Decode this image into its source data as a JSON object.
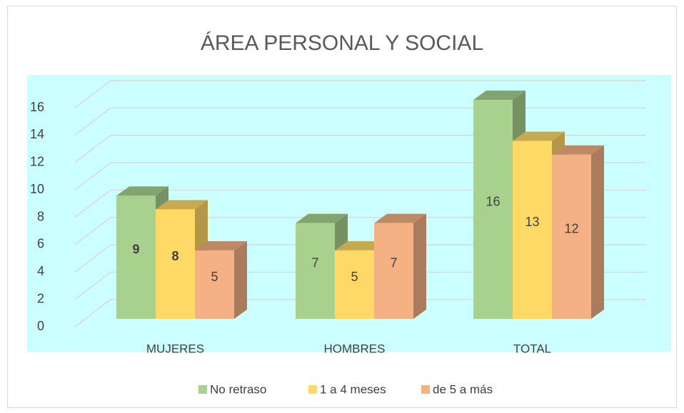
{
  "chart_data": {
    "type": "bar3d",
    "title": "ÁREA PERSONAL Y SOCIAL",
    "categories": [
      "MUJERES",
      "HOMBRES",
      "TOTAL"
    ],
    "series": [
      {
        "name": "No retraso",
        "color": "#a9d18e",
        "values": [
          9,
          7,
          16
        ]
      },
      {
        "name": "1 a 4 meses",
        "color": "#ffd966",
        "values": [
          8,
          5,
          13
        ]
      },
      {
        "name": "de 5 a más",
        "color": "#f4b183",
        "values": [
          5,
          7,
          12
        ]
      }
    ],
    "ylim": [
      0,
      16
    ],
    "yticks": [
      0,
      2,
      4,
      6,
      8,
      10,
      12,
      14,
      16
    ],
    "grid": true,
    "legend": "bottom",
    "plot_background": "#ccffff"
  }
}
